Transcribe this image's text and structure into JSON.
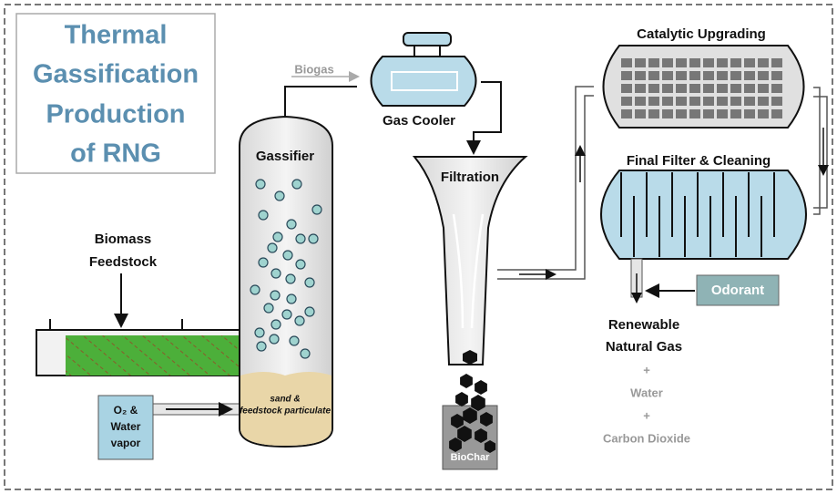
{
  "title": {
    "lines": [
      "Thermal",
      "Gassification",
      "Production",
      "of RNG"
    ]
  },
  "labels": {
    "biogas": "Biogas",
    "gas_cooler": "Gas Cooler",
    "catalytic_upgrading": "Catalytic Upgrading",
    "gassifier": "Gassifier",
    "filtration": "Filtration",
    "final_filter": "Final Filter & Cleaning",
    "biomass_feedstock": [
      "Biomass",
      "Feedstock"
    ],
    "odorant": "Odorant",
    "sand": [
      "sand &",
      "feedstock particulate"
    ],
    "oxygen": [
      "O₂ &",
      "Water",
      "vapor"
    ],
    "biochar": "BioChar"
  },
  "outputs": {
    "renewable_natural_gas": [
      "Renewable",
      "Natural Gas"
    ],
    "plus_1": "+",
    "water": "Water",
    "plus_2": "+",
    "carbon_dioxide": "Carbon Dioxide"
  }
}
